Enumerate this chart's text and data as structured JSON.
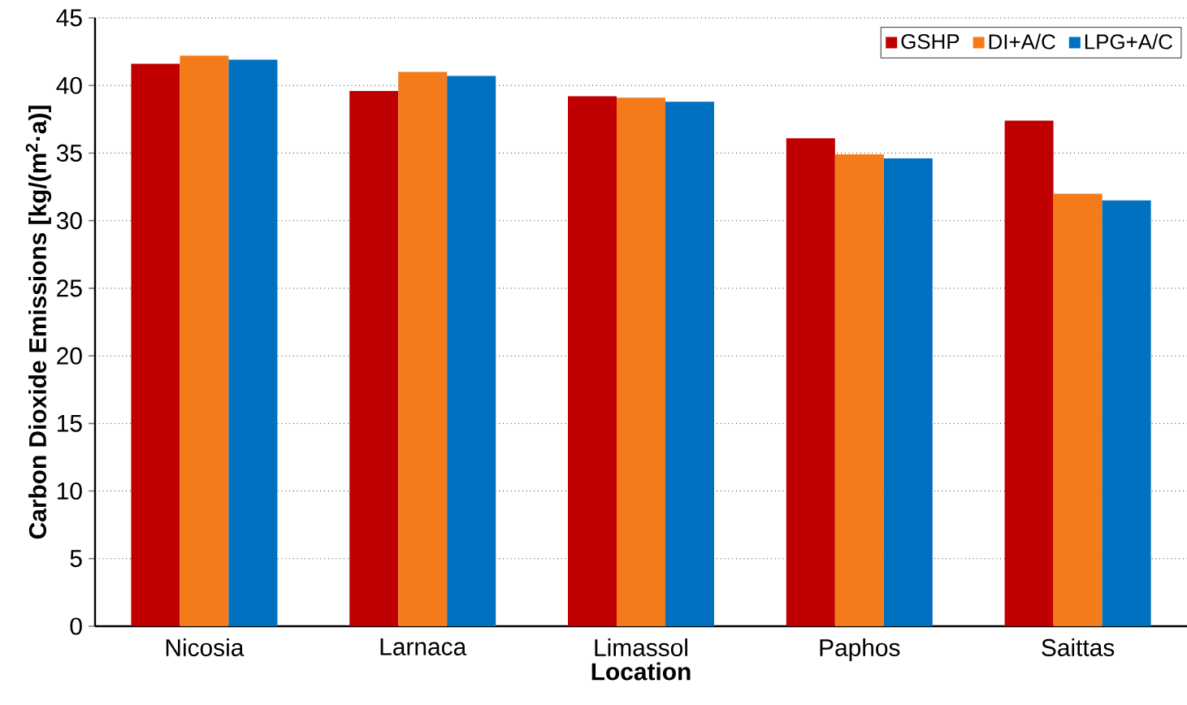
{
  "chart_data": {
    "type": "bar",
    "xlabel": "Location",
    "ylabel": "Carbon Dioxide Emissions [kg/(m$^{2}$·a)]",
    "categories": [
      "Nicosia",
      "Larnaca",
      "Limassol",
      "Paphos",
      "Saittas"
    ],
    "series": [
      {
        "name": "GSHP",
        "color": "#c00000",
        "values": [
          41.6,
          39.6,
          39.2,
          36.1,
          37.4
        ]
      },
      {
        "name": "DI+A/C",
        "color": "#f47b1a",
        "values": [
          42.2,
          41.0,
          39.1,
          34.9,
          32.0
        ]
      },
      {
        "name": "LPG+A/C",
        "color": "#0070c0",
        "values": [
          41.9,
          40.7,
          38.8,
          34.6,
          31.5
        ]
      }
    ],
    "ylim": [
      0,
      45
    ],
    "yticks": [
      0,
      5,
      10,
      15,
      20,
      25,
      30,
      35,
      40,
      45
    ],
    "grid": "y",
    "legend": "top right"
  }
}
